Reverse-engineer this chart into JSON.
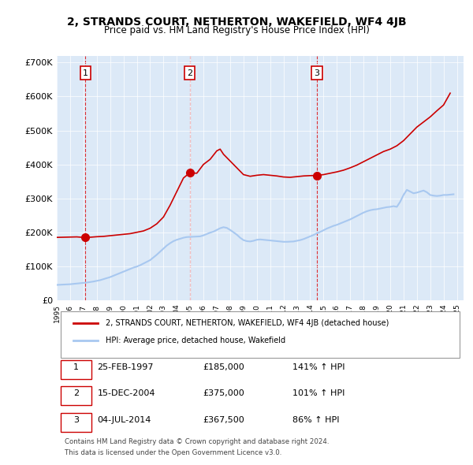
{
  "title": "2, STRANDS COURT, NETHERTON, WAKEFIELD, WF4 4JB",
  "subtitle": "Price paid vs. HM Land Registry's House Price Index (HPI)",
  "background_color": "#dce9f7",
  "plot_bg_color": "#dce9f7",
  "hpi_color": "#a8c8f0",
  "price_color": "#cc0000",
  "ylim": [
    0,
    720000
  ],
  "yticks": [
    0,
    100000,
    200000,
    300000,
    400000,
    500000,
    600000,
    700000
  ],
  "ytick_labels": [
    "£0",
    "£100K",
    "£200K",
    "£300K",
    "£400K",
    "£500K",
    "£600K",
    "£700K"
  ],
  "xlim_start": 1995.0,
  "xlim_end": 2025.5,
  "sale_dates": [
    1997.15,
    2004.96,
    2014.51
  ],
  "sale_prices": [
    185000,
    375000,
    367500
  ],
  "sale_labels": [
    "1",
    "2",
    "3"
  ],
  "legend_line1": "2, STRANDS COURT, NETHERTON, WAKEFIELD, WF4 4JB (detached house)",
  "legend_line2": "HPI: Average price, detached house, Wakefield",
  "table_rows": [
    [
      "1",
      "25-FEB-1997",
      "£185,000",
      "141% ↑ HPI"
    ],
    [
      "2",
      "15-DEC-2004",
      "£375,000",
      "101% ↑ HPI"
    ],
    [
      "3",
      "04-JUL-2014",
      "£367,500",
      "86% ↑ HPI"
    ]
  ],
  "footnote1": "Contains HM Land Registry data © Crown copyright and database right 2024.",
  "footnote2": "This data is licensed under the Open Government Licence v3.0.",
  "hpi_data_x": [
    1995.0,
    1995.25,
    1995.5,
    1995.75,
    1996.0,
    1996.25,
    1996.5,
    1996.75,
    1997.0,
    1997.25,
    1997.5,
    1997.75,
    1998.0,
    1998.25,
    1998.5,
    1998.75,
    1999.0,
    1999.25,
    1999.5,
    1999.75,
    2000.0,
    2000.25,
    2000.5,
    2000.75,
    2001.0,
    2001.25,
    2001.5,
    2001.75,
    2002.0,
    2002.25,
    2002.5,
    2002.75,
    2003.0,
    2003.25,
    2003.5,
    2003.75,
    2004.0,
    2004.25,
    2004.5,
    2004.75,
    2005.0,
    2005.25,
    2005.5,
    2005.75,
    2006.0,
    2006.25,
    2006.5,
    2006.75,
    2007.0,
    2007.25,
    2007.5,
    2007.75,
    2008.0,
    2008.25,
    2008.5,
    2008.75,
    2009.0,
    2009.25,
    2009.5,
    2009.75,
    2010.0,
    2010.25,
    2010.5,
    2010.75,
    2011.0,
    2011.25,
    2011.5,
    2011.75,
    2012.0,
    2012.25,
    2012.5,
    2012.75,
    2013.0,
    2013.25,
    2013.5,
    2013.75,
    2014.0,
    2014.25,
    2014.5,
    2014.75,
    2015.0,
    2015.25,
    2015.5,
    2015.75,
    2016.0,
    2016.25,
    2016.5,
    2016.75,
    2017.0,
    2017.25,
    2017.5,
    2017.75,
    2018.0,
    2018.25,
    2018.5,
    2018.75,
    2019.0,
    2019.25,
    2019.5,
    2019.75,
    2020.0,
    2020.25,
    2020.5,
    2020.75,
    2021.0,
    2021.25,
    2021.5,
    2021.75,
    2022.0,
    2022.25,
    2022.5,
    2022.75,
    2023.0,
    2023.25,
    2023.5,
    2023.75,
    2024.0,
    2024.25,
    2024.5,
    2024.75
  ],
  "hpi_data_y": [
    45000,
    45500,
    46000,
    46500,
    47000,
    48000,
    49000,
    50000,
    51000,
    52000,
    53500,
    55000,
    57000,
    59000,
    62000,
    65000,
    68000,
    72000,
    76000,
    80000,
    84000,
    88000,
    92000,
    96000,
    99000,
    103000,
    108000,
    113000,
    118000,
    126000,
    134000,
    143000,
    152000,
    161000,
    168000,
    174000,
    178000,
    181000,
    184000,
    186000,
    186500,
    187000,
    187500,
    188000,
    191000,
    195000,
    199000,
    202000,
    207000,
    212000,
    215000,
    213000,
    207000,
    200000,
    193000,
    184000,
    177000,
    174000,
    173000,
    175000,
    178000,
    179000,
    178000,
    177000,
    176000,
    175000,
    174000,
    173000,
    172000,
    172000,
    172500,
    173000,
    175000,
    177000,
    180000,
    184000,
    188000,
    192000,
    197000,
    201000,
    206000,
    211000,
    215000,
    219000,
    222000,
    226000,
    230000,
    234000,
    238000,
    243000,
    248000,
    253000,
    258000,
    262000,
    265000,
    267000,
    268000,
    270000,
    272000,
    274000,
    275000,
    277000,
    275000,
    290000,
    310000,
    325000,
    320000,
    315000,
    317000,
    320000,
    323000,
    318000,
    310000,
    308000,
    307000,
    308000,
    310000,
    310000,
    311000,
    312000
  ],
  "price_data_x": [
    1995.0,
    1995.5,
    1996.0,
    1996.5,
    1997.0,
    1997.15,
    1997.5,
    1998.0,
    1998.5,
    1999.0,
    1999.5,
    2000.0,
    2000.5,
    2001.0,
    2001.5,
    2002.0,
    2002.5,
    2003.0,
    2003.5,
    2004.0,
    2004.5,
    2004.96,
    2005.0,
    2005.5,
    2006.0,
    2006.5,
    2007.0,
    2007.25,
    2007.5,
    2008.0,
    2008.5,
    2009.0,
    2009.5,
    2010.0,
    2010.5,
    2011.0,
    2011.5,
    2012.0,
    2012.5,
    2013.0,
    2013.5,
    2014.0,
    2014.51,
    2015.0,
    2015.5,
    2016.0,
    2016.5,
    2017.0,
    2017.5,
    2018.0,
    2018.5,
    2019.0,
    2019.5,
    2020.0,
    2020.5,
    2021.0,
    2021.5,
    2022.0,
    2022.5,
    2023.0,
    2023.5,
    2024.0,
    2024.5
  ],
  "price_data_y": [
    185000,
    185500,
    186000,
    186500,
    185000,
    185000,
    185500,
    187000,
    188000,
    190000,
    192000,
    194000,
    196000,
    200000,
    204000,
    212000,
    225000,
    245000,
    280000,
    320000,
    360000,
    375000,
    375000,
    374000,
    400000,
    415000,
    440000,
    445000,
    430000,
    410000,
    390000,
    370000,
    365000,
    368000,
    370000,
    368000,
    366000,
    363000,
    362000,
    364000,
    366000,
    367000,
    367500,
    370000,
    374000,
    378000,
    383000,
    390000,
    398000,
    408000,
    418000,
    428000,
    438000,
    445000,
    455000,
    470000,
    490000,
    510000,
    525000,
    540000,
    558000,
    575000,
    610000
  ]
}
